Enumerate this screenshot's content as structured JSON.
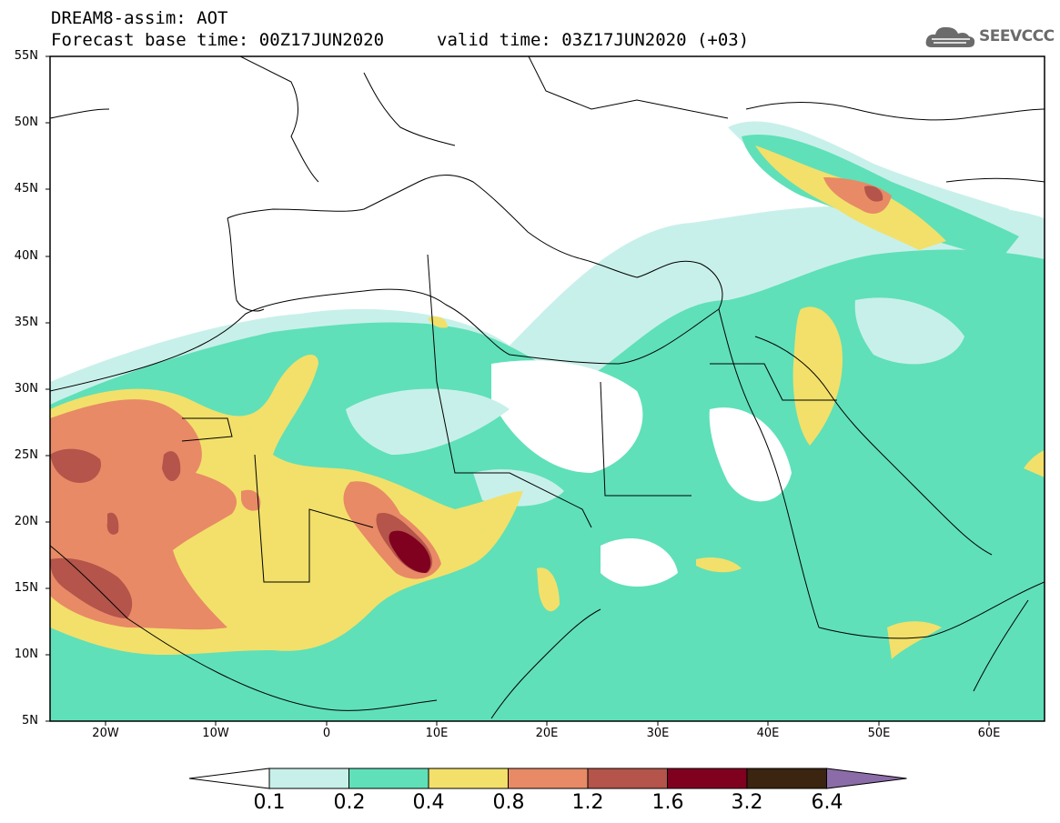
{
  "header": {
    "line1": "DREAM8-assim: AOT",
    "line2": "Forecast base time: 00Z17JUN2020",
    "valid": "valid time: 03Z17JUN2020 (+03)"
  },
  "logo": {
    "text": "SEEVCCC",
    "icon": "cloud-icon"
  },
  "map": {
    "type": "filled-contour-map",
    "variable": "AOT",
    "lat_labels": [
      "55N",
      "50N",
      "45N",
      "40N",
      "35N",
      "30N",
      "25N",
      "20N",
      "15N",
      "10N",
      "5N"
    ],
    "lon_labels": [
      "20W",
      "10W",
      "0",
      "10E",
      "20E",
      "30E",
      "40E",
      "50E",
      "60E"
    ],
    "extent": {
      "lon": [
        -25,
        65
      ],
      "lat": [
        5,
        55
      ]
    }
  },
  "legend": {
    "labels": [
      "0.1",
      "0.2",
      "0.4",
      "0.8",
      "1.2",
      "1.6",
      "3.2",
      "6.4"
    ],
    "colors": [
      "#c8f0ea",
      "#5fe0b8",
      "#f2e06a",
      "#e88a66",
      "#b4544a",
      "#800020",
      "#3b2410",
      "#8c6ca8"
    ]
  }
}
